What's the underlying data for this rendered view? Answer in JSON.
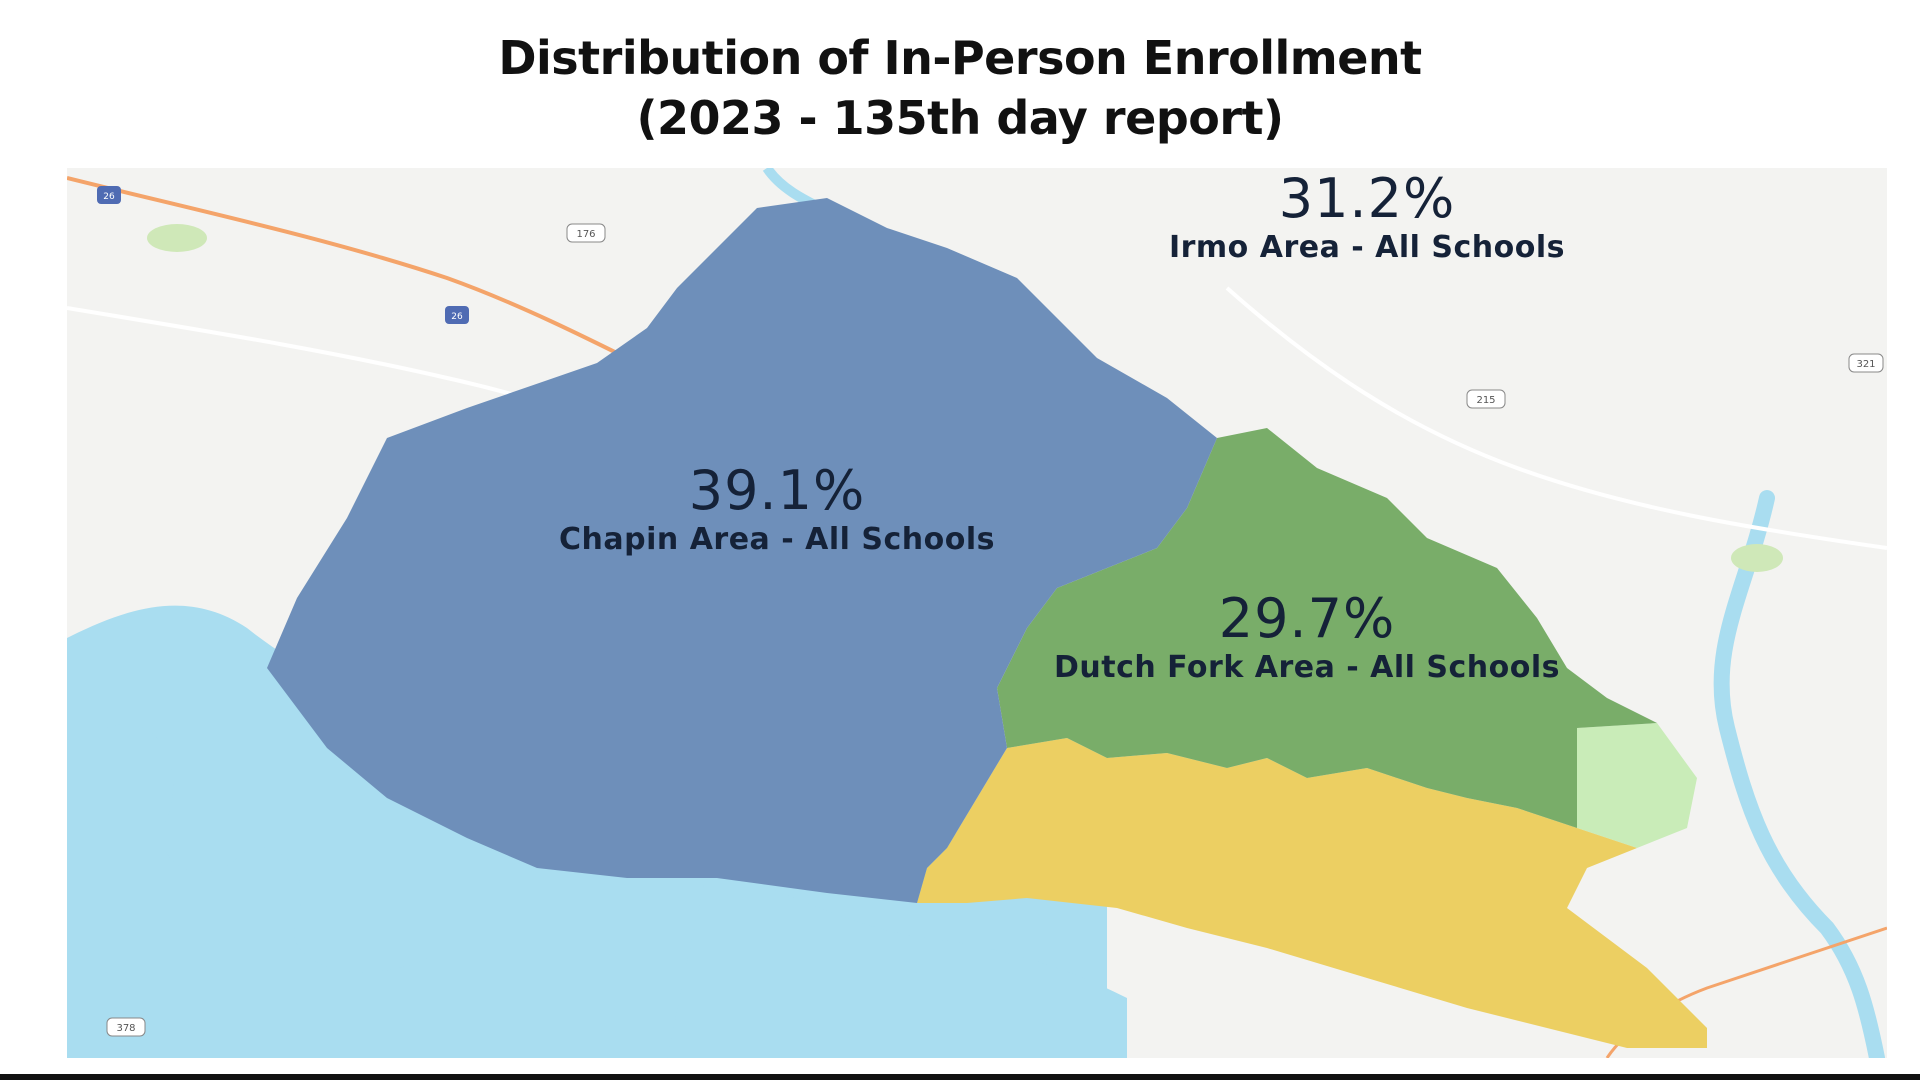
{
  "title": {
    "line1": "Distribution of In-Person Enrollment",
    "line2": "(2023 - 135th day report)"
  },
  "regions": [
    {
      "key": "chapin",
      "percent": "39.1%",
      "name": "Chapin Area - All Schools",
      "color": "#6e8fba"
    },
    {
      "key": "dutch_fork",
      "percent": "29.7%",
      "name": "Dutch Fork Area - All Schools",
      "color": "#79ad69"
    },
    {
      "key": "irmo",
      "percent": "31.2%",
      "name": "Irmo Area - All Schools",
      "color": "#eccf62"
    }
  ],
  "map": {
    "water_color": "#a9ddf0",
    "land_color": "#f3f3f1",
    "highway_color": "#f4a46a",
    "shields": [
      "26",
      "176",
      "26",
      "215",
      "321",
      "378"
    ]
  }
}
